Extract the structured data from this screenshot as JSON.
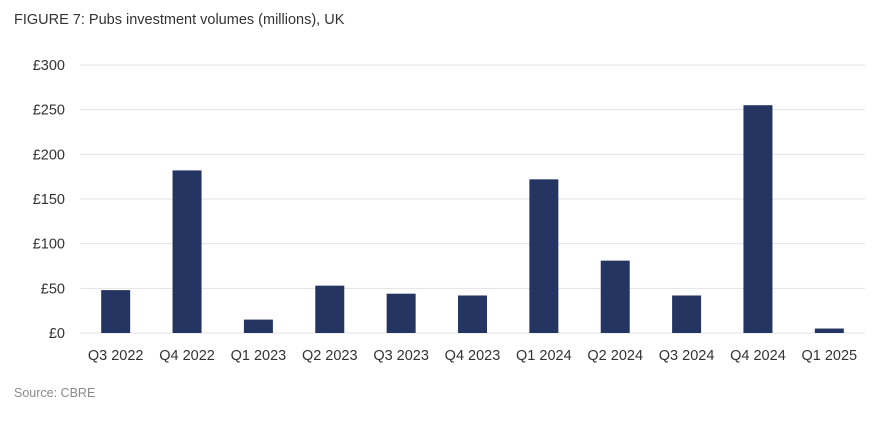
{
  "chart_data": {
    "type": "bar",
    "title": "FIGURE 7: Pubs investment volumes (millions), UK",
    "xlabel": "",
    "ylabel": "",
    "ylim": [
      0,
      300
    ],
    "y_ticks": [
      0,
      50,
      100,
      150,
      200,
      250,
      300
    ],
    "y_tick_labels": [
      "£0",
      "£50",
      "£100",
      "£150",
      "£200",
      "£250",
      "£300"
    ],
    "grid": true,
    "categories": [
      "Q3 2022",
      "Q4 2022",
      "Q1 2023",
      "Q2 2023",
      "Q3 2023",
      "Q4 2023",
      "Q1 2024",
      "Q2 2024",
      "Q3 2024",
      "Q4 2024",
      "Q1 2025"
    ],
    "values": [
      48,
      182,
      15,
      53,
      44,
      42,
      172,
      81,
      42,
      255,
      5
    ],
    "bar_color": "#253561",
    "grid_color": "#e3e3e3",
    "source": "Source: CBRE"
  }
}
